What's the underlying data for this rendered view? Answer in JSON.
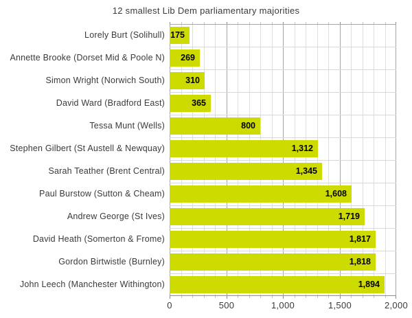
{
  "chart_data": {
    "type": "bar",
    "orientation": "horizontal",
    "title": "12 smallest Lib Dem parliamentary majorities",
    "categories": [
      "Lorely Burt (Solihull)",
      "Annette Brooke (Dorset Mid & Poole N)",
      "Simon Wright (Norwich South)",
      "David Ward (Bradford East)",
      "Tessa Munt (Wells)",
      "Stephen Gilbert (St Austell & Newquay)",
      "Sarah Teather (Brent Central)",
      "Paul Burstow (Sutton & Cheam)",
      "Andrew George (St Ives)",
      "David Heath (Somerton & Frome)",
      "Gordon Birtwistle (Burnley)",
      "John Leech (Manchester Withington)"
    ],
    "values": [
      175,
      269,
      310,
      365,
      800,
      1312,
      1345,
      1608,
      1719,
      1817,
      1818,
      1894
    ],
    "value_labels": [
      "175",
      "269",
      "310",
      "365",
      "800",
      "1,312",
      "1,345",
      "1,608",
      "1,719",
      "1,817",
      "1,818",
      "1,894"
    ],
    "xlabel": "",
    "ylabel": "",
    "xlim": [
      0,
      2000
    ],
    "x_ticks": [
      0,
      500,
      1000,
      1500,
      2000
    ],
    "x_tick_labels": [
      "0",
      "500",
      "1,000",
      "1,500",
      "2,000"
    ],
    "minor_tick_step": 100,
    "grid": "on",
    "legend": "none",
    "value_label_position": "inside-end",
    "colors": {
      "bar": "#cedb00",
      "value_label": "#000000",
      "category_label": "#3a3a3a",
      "title": "#3a3a3a",
      "tick_label": "#3a3a3a",
      "major_gridline": "#a6a6a6",
      "minor_gridline": "#dedede",
      "row_gridline": "#d9d9d9",
      "axis_line": "#8c8c8c",
      "minor_tick": "#c4c4c4",
      "major_tick": "#8c8c8c",
      "background": "#ffffff"
    }
  }
}
